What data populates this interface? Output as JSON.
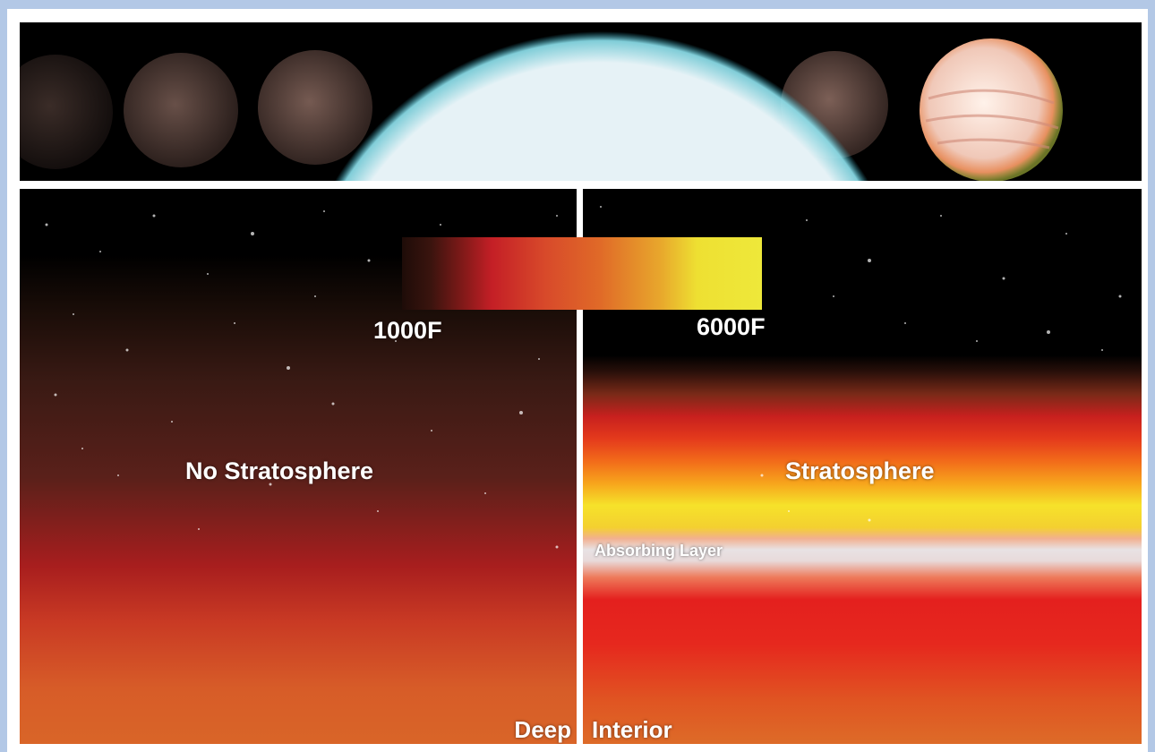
{
  "colorbar": {
    "min_label": "1000F",
    "max_label": "6000F",
    "colors": [
      "#1e0c08",
      "#c41f26",
      "#e06a28",
      "#e8a82c",
      "#eee83a"
    ]
  },
  "panels": {
    "left": {
      "title": "No Stratosphere",
      "bottom_label": "Deep"
    },
    "right": {
      "title": "Stratosphere",
      "layer_label": "Absorbing Layer",
      "bottom_label": "Interior"
    }
  },
  "star": {
    "color": "#e6f2f6",
    "glow": "#7fe0f0"
  },
  "planets": [
    {
      "tint": "#3a2c28",
      "brightness": 0.25
    },
    {
      "tint": "#4c3a34",
      "brightness": 0.35
    },
    {
      "tint": "#6a4a40",
      "brightness": 0.45
    },
    {
      "tint": "#7a5a50",
      "brightness": 0.55
    },
    {
      "tint": "#f3ded2",
      "brightness": 1.0
    }
  ]
}
